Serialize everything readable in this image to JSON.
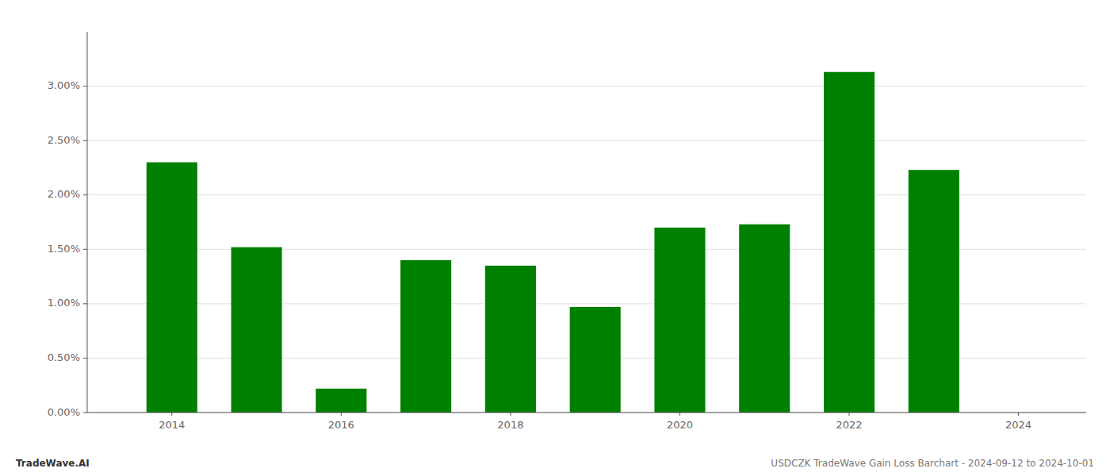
{
  "chart_data": {
    "type": "bar",
    "x": [
      2014,
      2015,
      2016,
      2017,
      2018,
      2019,
      2020,
      2021,
      2022,
      2023
    ],
    "values": [
      0.023,
      0.0152,
      0.0022,
      0.014,
      0.0135,
      0.0097,
      0.017,
      0.0173,
      0.0313,
      0.0223
    ],
    "color": "#008000",
    "xlim": [
      2013.0,
      2024.8
    ],
    "xticks": [
      2014,
      2016,
      2018,
      2020,
      2022,
      2024
    ],
    "ylim": [
      0,
      0.035
    ],
    "yticks": [
      {
        "value": 0.0,
        "label": "0.00%"
      },
      {
        "value": 0.005,
        "label": "0.50%"
      },
      {
        "value": 0.01,
        "label": "1.00%"
      },
      {
        "value": 0.015,
        "label": "1.50%"
      },
      {
        "value": 0.02,
        "label": "2.00%"
      },
      {
        "value": 0.025,
        "label": "2.50%"
      },
      {
        "value": 0.03,
        "label": "3.00%"
      }
    ],
    "grid": true,
    "annotations": [
      "TradeWave.AI",
      "USDCZK TradeWave Gain Loss Barchart - 2024-09-12 to 2024-10-01"
    ]
  }
}
